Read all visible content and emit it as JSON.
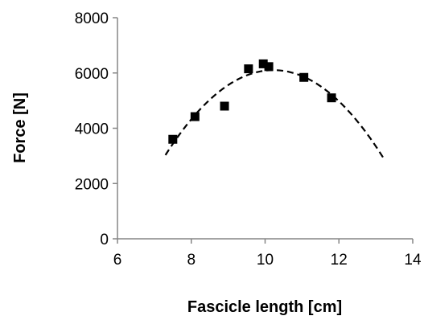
{
  "chart_data": {
    "type": "scatter",
    "xlabel": "Fascicle length [cm]",
    "ylabel": "Force [N]",
    "xlim": [
      6,
      14
    ],
    "ylim": [
      0,
      8000
    ],
    "x_ticks": [
      6,
      8,
      10,
      12,
      14
    ],
    "y_ticks": [
      0,
      2000,
      4000,
      6000,
      8000
    ],
    "grid": false,
    "legend": "none",
    "marker": "square",
    "marker_color": "#000000",
    "series": [
      {
        "points": [
          {
            "x": 7.5,
            "y": 3600
          },
          {
            "x": 8.1,
            "y": 4420
          },
          {
            "x": 8.9,
            "y": 4800
          },
          {
            "x": 9.55,
            "y": 6150
          },
          {
            "x": 9.95,
            "y": 6330
          },
          {
            "x": 10.1,
            "y": 6230
          },
          {
            "x": 11.05,
            "y": 5840
          },
          {
            "x": 11.8,
            "y": 5100
          }
        ]
      }
    ],
    "trendline": {
      "type": "polynomial-2",
      "style": "dashed",
      "color": "#000000",
      "points": [
        {
          "x": 7.3,
          "y": 2950
        },
        {
          "x": 8.0,
          "y": 4390
        },
        {
          "x": 9.0,
          "y": 5620
        },
        {
          "x": 10.0,
          "y": 6100
        },
        {
          "x": 10.2,
          "y": 6110
        },
        {
          "x": 11.0,
          "y": 5850
        },
        {
          "x": 12.0,
          "y": 4880
        },
        {
          "x": 13.2,
          "y": 3000
        }
      ]
    }
  }
}
